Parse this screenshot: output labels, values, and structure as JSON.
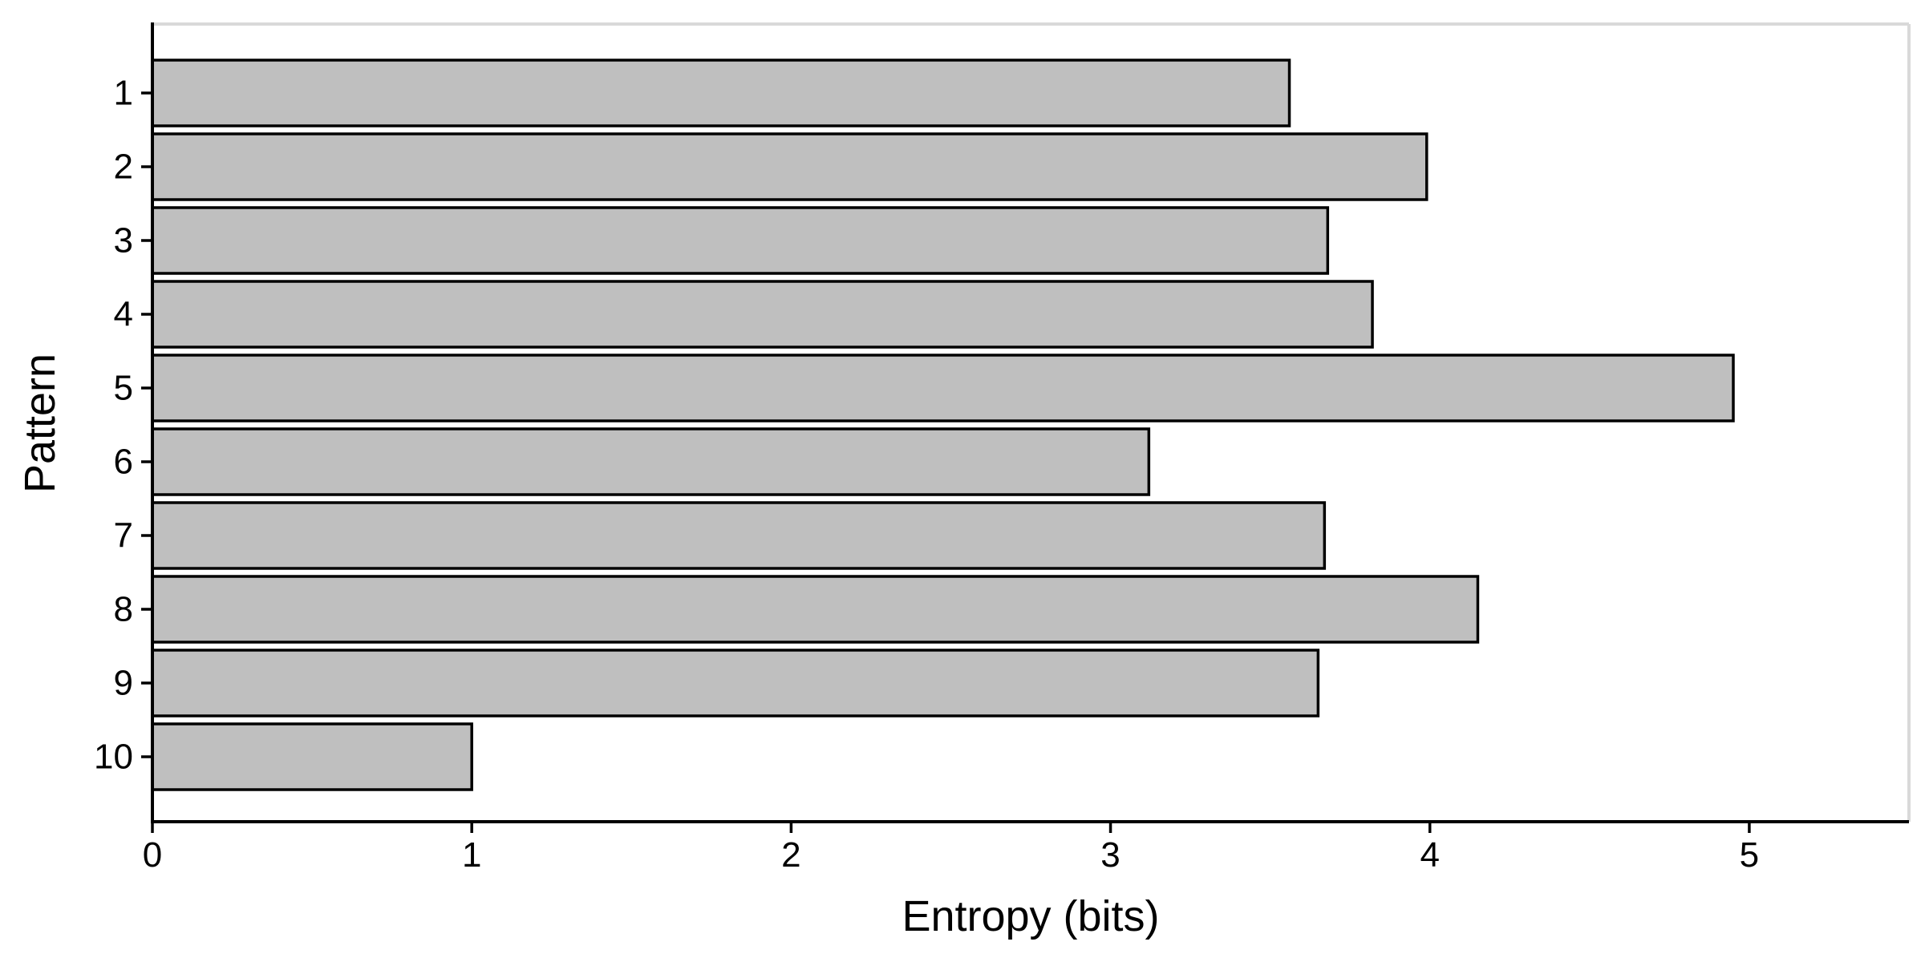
{
  "chart_data": {
    "type": "bar",
    "orientation": "horizontal",
    "categories": [
      "1",
      "2",
      "3",
      "4",
      "5",
      "6",
      "7",
      "8",
      "9",
      "10"
    ],
    "values": [
      3.56,
      3.99,
      3.68,
      3.82,
      4.95,
      3.12,
      3.67,
      4.15,
      3.65,
      1.0
    ],
    "title": "",
    "xlabel": "Entropy (bits)",
    "ylabel": "Pattern",
    "xlim": [
      0,
      5.5
    ],
    "x_ticks": [
      "0",
      "1",
      "2",
      "3",
      "4",
      "5"
    ],
    "grid": false,
    "colors": {
      "bar_fill": "#bfbfbf",
      "bar_edge": "#000000",
      "axis": "#000000",
      "frame": "#d9d9d9"
    }
  }
}
